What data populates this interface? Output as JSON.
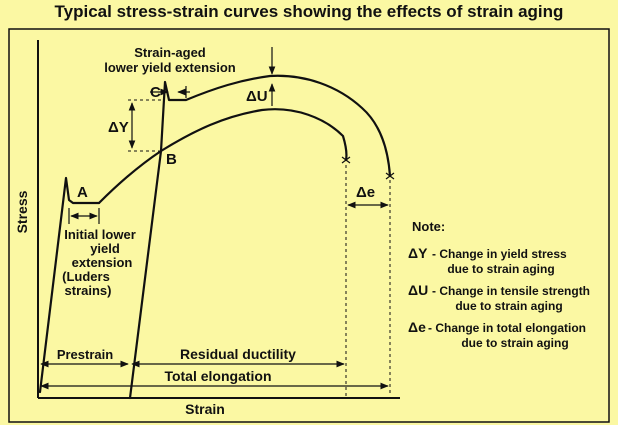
{
  "title": "Typical stress-strain curves showing the effects of strain aging",
  "axes": {
    "ylabel": "Stress",
    "xlabel": "Strain"
  },
  "points": {
    "A": "A",
    "B": "B",
    "C": "C"
  },
  "annotations": {
    "strain_aged_line1": "Strain-aged",
    "strain_aged_line2": "lower yield extension",
    "delta_y": "ΔY",
    "delta_u": "ΔU",
    "delta_e": "Δe",
    "initial_line1": "Initial lower",
    "initial_line2": "yield",
    "initial_line3": "extension",
    "initial_line4": "(Luders",
    "initial_line5": "strains)"
  },
  "dimensions": {
    "prestrain": "Prestrain",
    "residual_ductility": "Residual ductility",
    "total_elongation": "Total elongation"
  },
  "note": {
    "heading": "Note:",
    "items": [
      {
        "symbol": "ΔY",
        "line1": "- Change in yield stress",
        "line2": "due to strain aging"
      },
      {
        "symbol": "ΔU",
        "line1": "- Change in tensile strength",
        "line2": "due to strain aging"
      },
      {
        "symbol": "Δe",
        "line1": "- Change in total elongation",
        "line2": "due to strain aging"
      }
    ]
  },
  "colors": {
    "background": "#fbf8a3",
    "frame": "#111111",
    "ink": "#111111"
  }
}
